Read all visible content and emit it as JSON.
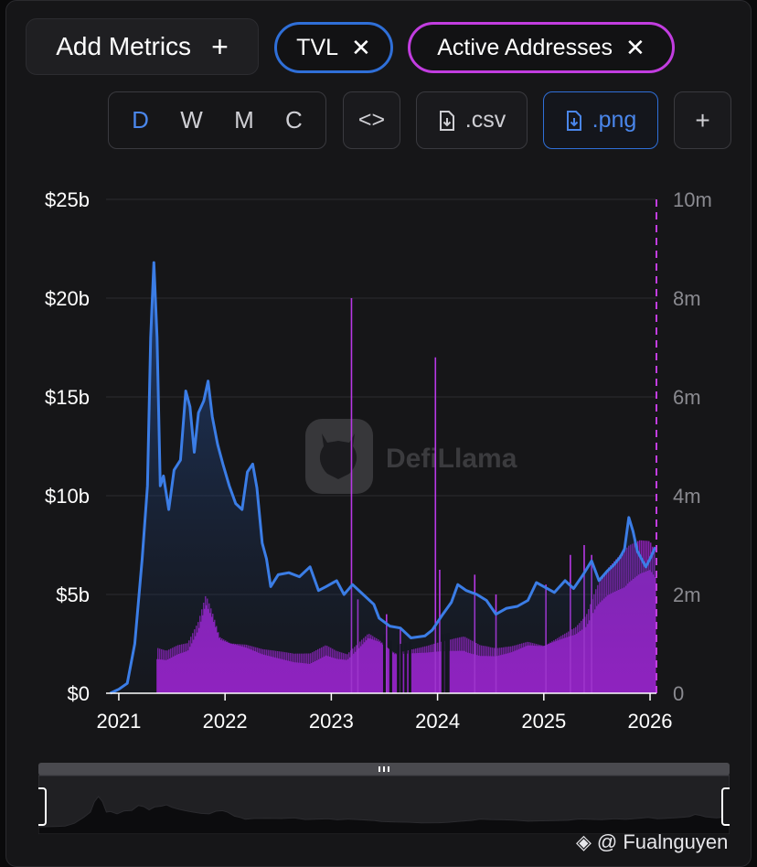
{
  "toolbar": {
    "add_metrics_label": "Add Metrics",
    "add_icon": "plus-icon",
    "metric_chips": [
      {
        "label": "TVL",
        "color": "#2f6fd8"
      },
      {
        "label": "Active Addresses",
        "color": "#c23de0"
      }
    ],
    "close_glyph": "✕",
    "intervals": [
      "D",
      "W",
      "M",
      "C"
    ],
    "active_interval": "D",
    "embed_label": "<>",
    "csv_label": ".csv",
    "png_label": ".png",
    "more_label": "+"
  },
  "watermark_brand": "DefiLlama",
  "credit": "@ Fualnguyen",
  "chart_data": {
    "type": "line",
    "series": [
      {
        "name": "TVL",
        "color": "#3b7de6",
        "axis": "left",
        "points": [
          [
            2020.92,
            0.0
          ],
          [
            2021.0,
            0.2
          ],
          [
            2021.08,
            0.5
          ],
          [
            2021.15,
            2.5
          ],
          [
            2021.22,
            6.8
          ],
          [
            2021.27,
            10.5
          ],
          [
            2021.3,
            18.0
          ],
          [
            2021.33,
            21.8
          ],
          [
            2021.36,
            18.0
          ],
          [
            2021.39,
            10.5
          ],
          [
            2021.42,
            11.0
          ],
          [
            2021.47,
            9.3
          ],
          [
            2021.52,
            11.3
          ],
          [
            2021.58,
            11.8
          ],
          [
            2021.63,
            15.3
          ],
          [
            2021.67,
            14.5
          ],
          [
            2021.71,
            12.2
          ],
          [
            2021.75,
            14.2
          ],
          [
            2021.8,
            14.8
          ],
          [
            2021.84,
            15.8
          ],
          [
            2021.88,
            14.0
          ],
          [
            2021.93,
            12.6
          ],
          [
            2021.98,
            11.6
          ],
          [
            2022.04,
            10.5
          ],
          [
            2022.1,
            9.6
          ],
          [
            2022.16,
            9.3
          ],
          [
            2022.21,
            11.2
          ],
          [
            2022.26,
            11.6
          ],
          [
            2022.3,
            10.4
          ],
          [
            2022.35,
            7.6
          ],
          [
            2022.39,
            6.8
          ],
          [
            2022.43,
            5.4
          ],
          [
            2022.5,
            6.0
          ],
          [
            2022.6,
            6.1
          ],
          [
            2022.7,
            5.9
          ],
          [
            2022.8,
            6.4
          ],
          [
            2022.88,
            5.2
          ],
          [
            2022.95,
            5.4
          ],
          [
            2023.05,
            5.7
          ],
          [
            2023.12,
            5.0
          ],
          [
            2023.2,
            5.5
          ],
          [
            2023.3,
            5.0
          ],
          [
            2023.4,
            4.5
          ],
          [
            2023.45,
            3.8
          ],
          [
            2023.55,
            3.4
          ],
          [
            2023.65,
            3.3
          ],
          [
            2023.75,
            2.8
          ],
          [
            2023.88,
            2.9
          ],
          [
            2023.95,
            3.2
          ],
          [
            2024.05,
            4.0
          ],
          [
            2024.13,
            4.6
          ],
          [
            2024.19,
            5.5
          ],
          [
            2024.27,
            5.2
          ],
          [
            2024.37,
            5.0
          ],
          [
            2024.46,
            4.7
          ],
          [
            2024.55,
            4.0
          ],
          [
            2024.65,
            4.3
          ],
          [
            2024.75,
            4.4
          ],
          [
            2024.85,
            4.7
          ],
          [
            2024.93,
            5.6
          ],
          [
            2025.0,
            5.4
          ],
          [
            2025.1,
            5.1
          ],
          [
            2025.2,
            5.7
          ],
          [
            2025.28,
            5.3
          ],
          [
            2025.37,
            6.0
          ],
          [
            2025.45,
            6.7
          ],
          [
            2025.52,
            5.7
          ],
          [
            2025.6,
            6.2
          ],
          [
            2025.66,
            6.5
          ],
          [
            2025.72,
            6.9
          ],
          [
            2025.76,
            7.3
          ],
          [
            2025.8,
            8.9
          ],
          [
            2025.84,
            8.2
          ],
          [
            2025.88,
            7.2
          ],
          [
            2025.92,
            6.8
          ],
          [
            2025.96,
            6.4
          ],
          [
            2026.0,
            6.8
          ],
          [
            2026.05,
            7.4
          ]
        ]
      },
      {
        "name": "Active Addresses",
        "color": "#a523d6",
        "axis": "right",
        "points": [
          [
            2021.36,
            0.8
          ],
          [
            2021.45,
            0.75
          ],
          [
            2021.55,
            0.85
          ],
          [
            2021.65,
            0.9
          ],
          [
            2021.75,
            1.3
          ],
          [
            2021.82,
            1.8
          ],
          [
            2021.88,
            1.5
          ],
          [
            2021.95,
            1.05
          ],
          [
            2022.05,
            0.95
          ],
          [
            2022.2,
            0.9
          ],
          [
            2022.35,
            0.8
          ],
          [
            2022.5,
            0.75
          ],
          [
            2022.65,
            0.7
          ],
          [
            2022.8,
            0.7
          ],
          [
            2022.95,
            0.85
          ],
          [
            2023.05,
            0.75
          ],
          [
            2023.15,
            0.7
          ],
          [
            2023.25,
            0.9
          ],
          [
            2023.35,
            1.1
          ],
          [
            2023.45,
            1.0
          ],
          [
            2023.6,
            0.75
          ],
          [
            2023.75,
            0.8
          ],
          [
            2023.9,
            0.85
          ],
          [
            2024.0,
            0.9
          ],
          [
            2024.12,
            0.95
          ],
          [
            2024.25,
            1.0
          ],
          [
            2024.4,
            0.85
          ],
          [
            2024.55,
            0.8
          ],
          [
            2024.7,
            0.85
          ],
          [
            2024.85,
            0.95
          ],
          [
            2025.0,
            0.9
          ],
          [
            2025.15,
            1.05
          ],
          [
            2025.3,
            1.2
          ],
          [
            2025.4,
            1.4
          ],
          [
            2025.5,
            1.9
          ],
          [
            2025.6,
            2.2
          ],
          [
            2025.7,
            2.4
          ],
          [
            2025.8,
            2.6
          ],
          [
            2025.9,
            2.7
          ],
          [
            2026.0,
            2.7
          ],
          [
            2026.05,
            2.5
          ]
        ],
        "spikes": [
          [
            2023.19,
            8.0
          ],
          [
            2023.25,
            1.9
          ],
          [
            2023.52,
            1.6
          ],
          [
            2023.65,
            1.3
          ],
          [
            2023.98,
            6.8
          ],
          [
            2024.02,
            2.5
          ],
          [
            2024.35,
            2.4
          ],
          [
            2024.55,
            2.0
          ],
          [
            2025.02,
            2.2
          ],
          [
            2025.25,
            2.8
          ],
          [
            2025.38,
            3.0
          ],
          [
            2025.45,
            2.8
          ]
        ],
        "gaps": [
          2023.5,
          2023.56,
          2023.63,
          2023.66,
          2023.7,
          2023.74,
          2024.05,
          2024.08,
          2024.1
        ]
      }
    ],
    "x_ticks": [
      "2021",
      "2022",
      "2023",
      "2024",
      "2025",
      "2026"
    ],
    "y_left_ticks": [
      "$0",
      "$5b",
      "$10b",
      "$15b",
      "$20b",
      "$25b"
    ],
    "y_right_ticks": [
      "0",
      "2m",
      "4m",
      "6m",
      "8m",
      "10m"
    ],
    "xlim": [
      2020.88,
      2026.06
    ],
    "ylim_left": [
      0,
      25
    ],
    "ylim_right": [
      0,
      10
    ],
    "grid": true,
    "legend": "chips above chart"
  }
}
